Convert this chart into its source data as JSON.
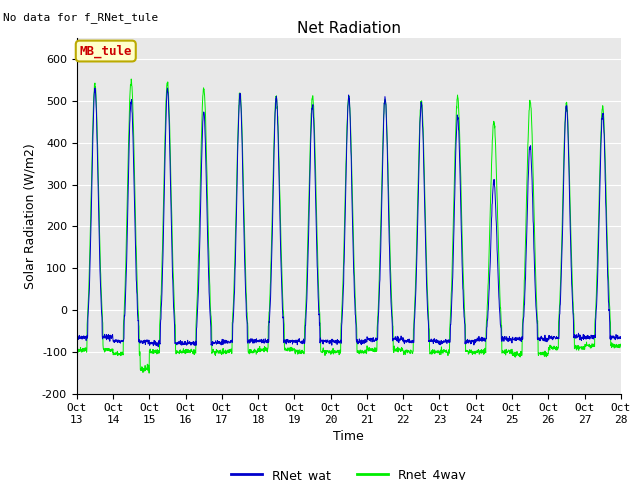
{
  "title": "Net Radiation",
  "xlabel": "Time",
  "ylabel": "Solar Radiation (W/m2)",
  "no_data_text": "No data for f_RNet_tule",
  "legend_label": "MB_tule",
  "line1_label": "RNet_wat",
  "line2_label": "Rnet_4way",
  "line1_color": "#0000cc",
  "line2_color": "#00ee00",
  "ylim": [
    -200,
    650
  ],
  "yticks": [
    -200,
    -100,
    0,
    100,
    200,
    300,
    400,
    500,
    600
  ],
  "xtick_labels": [
    "Oct 13",
    "Oct 14",
    "Oct 15",
    "Oct 16",
    "Oct 17",
    "Oct 18",
    "Oct 19",
    "Oct 20",
    "Oct 21",
    "Oct 22",
    "Oct 23",
    "Oct 24",
    "Oct 25",
    "Oct 26",
    "Oct 27",
    "Oct 28"
  ],
  "n_days": 15,
  "points_per_day": 144,
  "background_color": "#e8e8e8",
  "box_facecolor": "#ffffcc",
  "box_edgecolor": "#bbaa00",
  "box_textcolor": "#cc0000",
  "title_fontsize": 11,
  "axis_fontsize": 9,
  "tick_fontsize": 8
}
